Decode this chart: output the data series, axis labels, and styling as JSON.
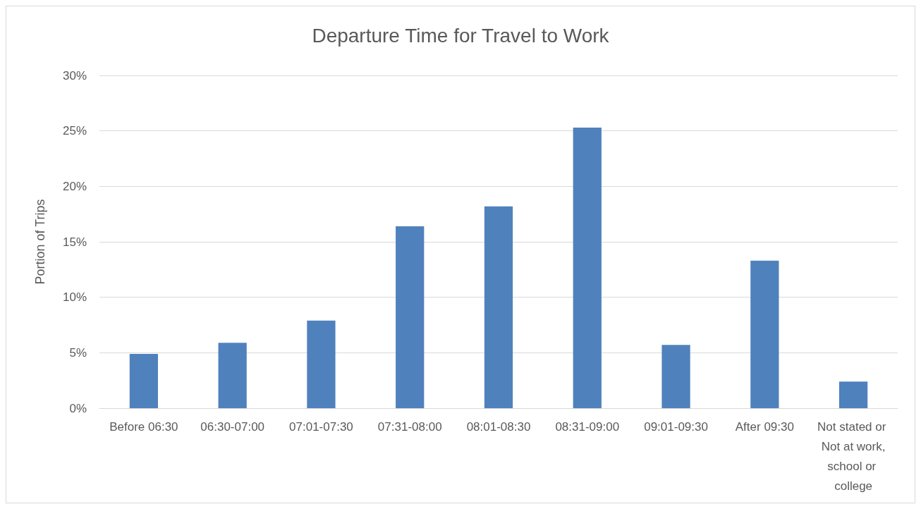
{
  "chart_data": {
    "type": "bar",
    "title": "Departure Time for Travel to Work",
    "ylabel": "Portion of Trips",
    "categories": [
      "Before 06:30",
      "06:30-07:00",
      "07:01-07:30",
      "07:31-08:00",
      "08:01-08:30",
      "08:31-09:00",
      "09:01-09:30",
      "After 09:30",
      "Not stated or Not at work,school or college"
    ],
    "values": [
      4.9,
      5.9,
      7.9,
      16.4,
      18.2,
      25.3,
      5.7,
      13.3,
      2.4
    ],
    "color": "#4f81bd",
    "ylim": [
      0,
      30
    ],
    "yticks": [
      {
        "value": 0,
        "label": "0%"
      },
      {
        "value": 5,
        "label": "5%"
      },
      {
        "value": 10,
        "label": "10%"
      },
      {
        "value": 15,
        "label": "15%"
      },
      {
        "value": 20,
        "label": "20%"
      },
      {
        "value": 25,
        "label": "25%"
      },
      {
        "value": 30,
        "label": "30%"
      }
    ],
    "grid": "y"
  }
}
